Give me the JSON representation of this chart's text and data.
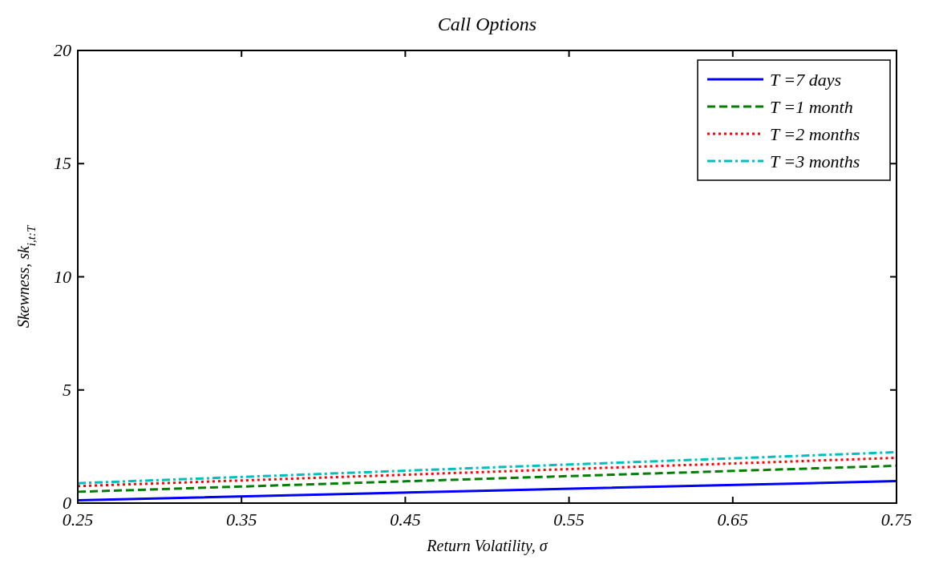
{
  "chart_data": {
    "type": "line",
    "title": "Call Options",
    "xlabel": "Return Volatility, σ",
    "ylabel": "Skewness, sk$_{i,t:T}$",
    "x": [
      0.25,
      0.5,
      0.75
    ],
    "xlim": [
      0.25,
      0.75
    ],
    "xticks": [
      0.25,
      0.35,
      0.45,
      0.55,
      0.65,
      0.75
    ],
    "ylim": [
      0,
      20
    ],
    "yticks": [
      0,
      5,
      10,
      15,
      20
    ],
    "grid": false,
    "legend": "top right",
    "marker": "none",
    "series": [
      {
        "name": "T =7 days",
        "color": "#0000ff",
        "line_style": "solid",
        "values": [
          0.12,
          0.55,
          0.97
        ]
      },
      {
        "name": "T =1 month",
        "color": "#008000",
        "line_style": "dashed",
        "values": [
          0.5,
          1.08,
          1.65
        ]
      },
      {
        "name": "T =2 months",
        "color": "#ff0000",
        "line_style": "dotted",
        "values": [
          0.75,
          1.38,
          2.0
        ]
      },
      {
        "name": "T =3 months",
        "color": "#00bfbf",
        "line_style": "dashdot",
        "values": [
          0.88,
          1.57,
          2.25
        ]
      }
    ]
  }
}
